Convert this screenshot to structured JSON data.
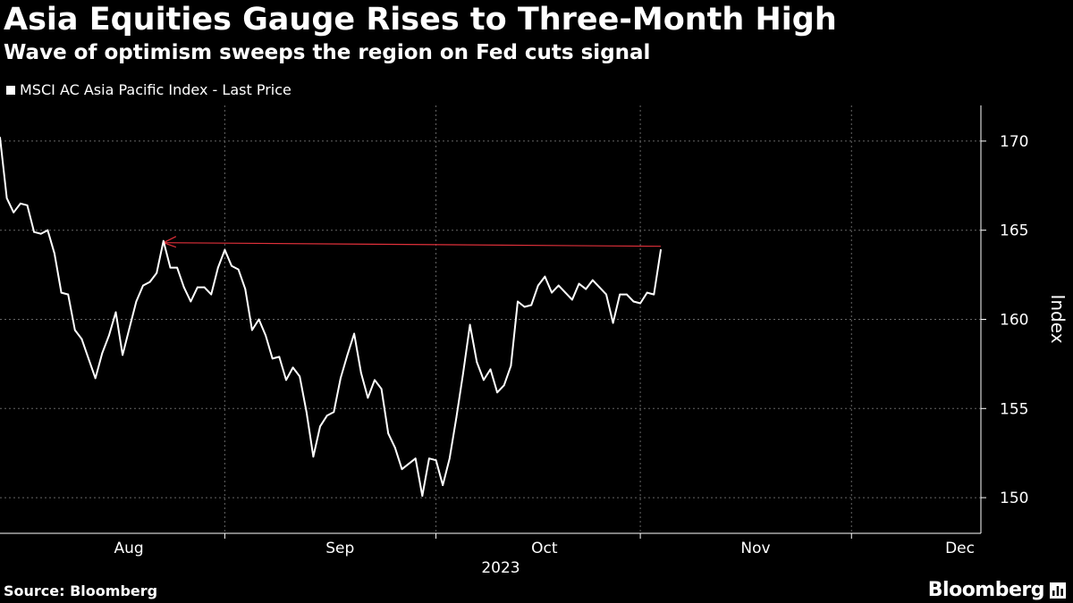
{
  "title": "Asia Equities Gauge Rises to Three-Month High",
  "subtitle": "Wave of optimism sweeps the region on Fed cuts signal",
  "source": "Source: Bloomberg",
  "brand": "Bloomberg",
  "colors": {
    "background": "#000000",
    "line": "#ffffff",
    "annotation": "#e0303a",
    "grid": "#666666"
  },
  "chart_data": {
    "type": "line",
    "title": "Asia Equities Gauge Rises to Three-Month High",
    "subtitle": "Wave of optimism sweeps the region on Fed cuts signal",
    "ylabel": "Index",
    "xlabel": "2023",
    "ylim": [
      148,
      172
    ],
    "yticks": [
      150,
      155,
      160,
      165,
      170
    ],
    "xlim": [
      "2023-07-14",
      "2023-12-05"
    ],
    "xticks": [
      {
        "date": "2023-08-01",
        "label": "Aug"
      },
      {
        "date": "2023-09-01",
        "label": "Sep"
      },
      {
        "date": "2023-10-01",
        "label": "Oct"
      },
      {
        "date": "2023-11-01",
        "label": "Nov"
      },
      {
        "date": "2023-12-01",
        "label": "Dec"
      }
    ],
    "grid_dates": [
      "2023-08-16",
      "2023-09-16",
      "2023-10-16",
      "2023-11-16"
    ],
    "grid": true,
    "legend_position": "top-left",
    "series": [
      {
        "name": "MSCI AC Asia Pacific Index - Last Price",
        "color": "#ffffff",
        "points": [
          [
            "2023-07-14",
            170.2
          ],
          [
            "2023-07-15",
            166.8
          ],
          [
            "2023-07-16",
            166.0
          ],
          [
            "2023-07-17",
            166.5
          ],
          [
            "2023-07-18",
            166.4
          ],
          [
            "2023-07-19",
            164.9
          ],
          [
            "2023-07-20",
            164.8
          ],
          [
            "2023-07-21",
            165.0
          ],
          [
            "2023-07-22",
            163.7
          ],
          [
            "2023-07-23",
            161.5
          ],
          [
            "2023-07-24",
            161.4
          ],
          [
            "2023-07-25",
            159.4
          ],
          [
            "2023-07-26",
            158.9
          ],
          [
            "2023-07-27",
            157.8
          ],
          [
            "2023-07-28",
            156.7
          ],
          [
            "2023-07-29",
            158.1
          ],
          [
            "2023-07-30",
            159.1
          ],
          [
            "2023-07-31",
            160.4
          ],
          [
            "2023-08-01",
            158.0
          ],
          [
            "2023-08-02",
            159.5
          ],
          [
            "2023-08-03",
            161.0
          ],
          [
            "2023-08-04",
            161.9
          ],
          [
            "2023-08-05",
            162.1
          ],
          [
            "2023-08-06",
            162.6
          ],
          [
            "2023-08-07",
            164.4
          ],
          [
            "2023-08-08",
            162.9
          ],
          [
            "2023-08-09",
            162.9
          ],
          [
            "2023-08-10",
            161.8
          ],
          [
            "2023-08-11",
            161.0
          ],
          [
            "2023-08-12",
            161.8
          ],
          [
            "2023-08-13",
            161.8
          ],
          [
            "2023-08-14",
            161.4
          ],
          [
            "2023-08-15",
            162.9
          ],
          [
            "2023-08-16",
            163.9
          ],
          [
            "2023-08-17",
            163.0
          ],
          [
            "2023-08-18",
            162.8
          ],
          [
            "2023-08-19",
            161.7
          ],
          [
            "2023-08-20",
            159.4
          ],
          [
            "2023-08-21",
            160.0
          ],
          [
            "2023-08-22",
            159.1
          ],
          [
            "2023-08-23",
            157.8
          ],
          [
            "2023-08-24",
            157.9
          ],
          [
            "2023-08-25",
            156.6
          ],
          [
            "2023-08-26",
            157.3
          ],
          [
            "2023-08-27",
            156.8
          ],
          [
            "2023-08-28",
            154.8
          ],
          [
            "2023-08-29",
            152.3
          ],
          [
            "2023-08-30",
            154.0
          ],
          [
            "2023-08-31",
            154.6
          ],
          [
            "2023-09-01",
            154.8
          ],
          [
            "2023-09-02",
            156.7
          ],
          [
            "2023-09-03",
            158.0
          ],
          [
            "2023-09-04",
            159.2
          ],
          [
            "2023-09-05",
            157.0
          ],
          [
            "2023-09-06",
            155.6
          ],
          [
            "2023-09-07",
            156.6
          ],
          [
            "2023-09-08",
            156.1
          ],
          [
            "2023-09-09",
            153.6
          ],
          [
            "2023-09-10",
            152.8
          ],
          [
            "2023-09-11",
            151.6
          ],
          [
            "2023-09-12",
            151.9
          ],
          [
            "2023-09-13",
            152.2
          ],
          [
            "2023-09-14",
            150.1
          ],
          [
            "2023-09-15",
            152.2
          ],
          [
            "2023-09-16",
            152.1
          ],
          [
            "2023-09-17",
            150.7
          ],
          [
            "2023-09-18",
            152.2
          ],
          [
            "2023-09-19",
            154.5
          ],
          [
            "2023-09-20",
            157.0
          ],
          [
            "2023-09-21",
            159.7
          ],
          [
            "2023-09-22",
            157.6
          ],
          [
            "2023-09-23",
            156.6
          ],
          [
            "2023-09-24",
            157.2
          ],
          [
            "2023-09-25",
            155.9
          ],
          [
            "2023-09-26",
            156.3
          ],
          [
            "2023-09-27",
            157.4
          ],
          [
            "2023-09-28",
            161.0
          ],
          [
            "2023-09-29",
            160.7
          ],
          [
            "2023-09-30",
            160.8
          ],
          [
            "2023-10-01",
            161.9
          ],
          [
            "2023-10-02",
            162.4
          ],
          [
            "2023-10-03",
            161.5
          ],
          [
            "2023-10-04",
            161.9
          ],
          [
            "2023-10-05",
            161.5
          ],
          [
            "2023-10-06",
            161.1
          ],
          [
            "2023-10-07",
            162.0
          ],
          [
            "2023-10-08",
            161.7
          ],
          [
            "2023-10-09",
            162.2
          ],
          [
            "2023-10-10",
            161.8
          ],
          [
            "2023-10-11",
            161.4
          ],
          [
            "2023-10-12",
            159.8
          ],
          [
            "2023-10-13",
            161.4
          ],
          [
            "2023-10-14",
            161.4
          ],
          [
            "2023-10-15",
            161.0
          ],
          [
            "2023-10-16",
            160.9
          ],
          [
            "2023-10-17",
            161.5
          ],
          [
            "2023-10-18",
            161.4
          ],
          [
            "2023-10-19",
            163.9
          ]
        ]
      }
    ],
    "annotations": [
      {
        "type": "reference-line",
        "from": [
          "2023-08-07",
          164.3
        ],
        "to": [
          "2023-10-19",
          164.1
        ],
        "color": "#e0303a",
        "arrow": "start"
      }
    ]
  }
}
